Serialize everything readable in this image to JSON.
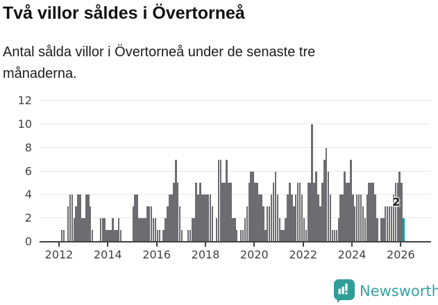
{
  "header": {
    "title": "Två villor såldes i Övertorneå",
    "subtitle": "Antal sålda villor i Övertorneå under de senaste tre månaderna."
  },
  "chart_data": {
    "type": "bar",
    "title": "Två villor såldes i Övertorneå",
    "subtitle": "Antal sålda villor i Övertorneå under de senaste tre månaderna.",
    "xlabel": "",
    "ylabel": "",
    "ylim": [
      0,
      12
    ],
    "y_ticks": [
      0,
      2,
      4,
      6,
      8,
      10,
      12
    ],
    "x_ticks": [
      2012,
      2014,
      2016,
      2018,
      2020,
      2022,
      2024,
      2026
    ],
    "grid": true,
    "legend_position": "none",
    "start_month": "2012-01",
    "monthly_values": [
      {
        "year": 2012,
        "values": [
          0,
          1,
          1,
          0,
          3,
          4,
          4,
          2,
          3,
          4,
          4,
          2
        ]
      },
      {
        "year": 2013,
        "values": [
          2,
          4,
          4,
          3,
          1,
          0,
          0,
          0,
          2,
          2,
          2,
          1
        ]
      },
      {
        "year": 2014,
        "values": [
          1,
          1,
          2,
          1,
          1,
          2,
          1,
          0,
          0,
          0,
          0,
          0
        ]
      },
      {
        "year": 2015,
        "values": [
          3,
          4,
          4,
          2,
          2,
          2,
          2,
          3,
          3,
          3,
          2,
          2
        ]
      },
      {
        "year": 2016,
        "values": [
          1,
          1,
          0,
          1,
          2,
          3,
          4,
          4,
          5,
          7,
          5,
          3
        ]
      },
      {
        "year": 2017,
        "values": [
          1,
          0,
          0,
          1,
          1,
          2,
          2,
          5,
          4,
          5,
          4,
          4
        ]
      },
      {
        "year": 2018,
        "values": [
          4,
          4,
          4,
          3,
          0,
          2,
          7,
          7,
          5,
          5,
          7,
          5
        ]
      },
      {
        "year": 2019,
        "values": [
          5,
          2,
          2,
          1,
          0,
          1,
          1,
          2,
          3,
          5,
          6,
          6
        ]
      },
      {
        "year": 2020,
        "values": [
          5,
          5,
          4,
          4,
          3,
          1,
          3,
          3,
          4,
          5,
          6,
          4
        ]
      },
      {
        "year": 2021,
        "values": [
          2,
          1,
          1,
          2,
          4,
          5,
          4,
          3,
          4,
          5,
          5,
          4
        ]
      },
      {
        "year": 2022,
        "values": [
          2,
          1,
          5,
          5,
          10,
          5,
          6,
          4,
          3,
          5,
          7,
          8
        ]
      },
      {
        "year": 2023,
        "values": [
          6,
          4,
          1,
          1,
          1,
          2,
          4,
          4,
          6,
          5,
          5,
          7
        ]
      },
      {
        "year": 2024,
        "values": [
          4,
          3,
          4,
          4,
          4,
          3,
          2,
          4,
          5,
          5,
          5,
          4
        ]
      },
      {
        "year": 2025,
        "values": [
          2,
          0,
          2,
          2,
          3,
          3,
          3,
          3,
          4,
          5,
          5,
          6
        ]
      },
      {
        "year": 2026,
        "values": [
          5,
          2
        ]
      }
    ],
    "highlight_last": {
      "value": 2,
      "label": "2",
      "color": "#00a39a"
    },
    "bar_color": "#6c6c71",
    "axis_color": "#404045"
  },
  "footer": {
    "brand": "Newsworthy",
    "brand_color": "#38a1a1"
  }
}
